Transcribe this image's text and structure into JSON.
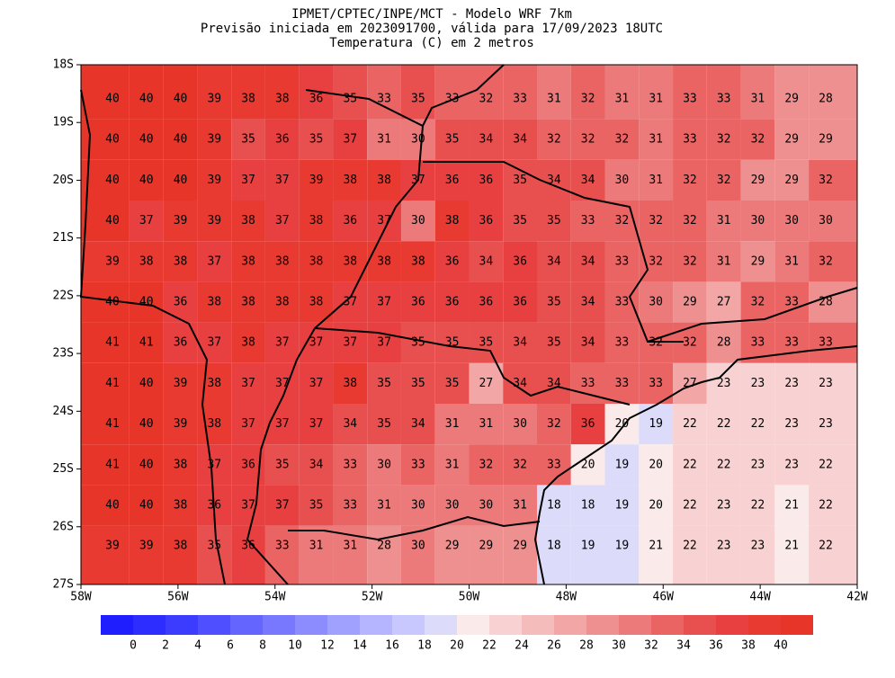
{
  "header": {
    "title": "IPMET/CPTEC/INPE/MCT - Modelo WRF 7km",
    "subtitle": "Previsão iniciada em 2023091700, válida para 17/09/2023 18UTC",
    "variable": "Temperatura (C) em 2 metros"
  },
  "map": {
    "lon_lim": [
      58,
      42
    ],
    "lat_lim": [
      18,
      27
    ],
    "lon_ticks": [
      {
        "value": 58,
        "label": "58W"
      },
      {
        "value": 56,
        "label": "56W"
      },
      {
        "value": 54,
        "label": "54W"
      },
      {
        "value": 52,
        "label": "52W"
      },
      {
        "value": 50,
        "label": "50W"
      },
      {
        "value": 48,
        "label": "48W"
      },
      {
        "value": 46,
        "label": "46W"
      },
      {
        "value": 44,
        "label": "44W"
      },
      {
        "value": 42,
        "label": "42W"
      }
    ],
    "lat_ticks": [
      {
        "value": 18,
        "label": "18S"
      },
      {
        "value": 19,
        "label": "19S"
      },
      {
        "value": 20,
        "label": "20S"
      },
      {
        "value": 21,
        "label": "21S"
      },
      {
        "value": 22,
        "label": "22S"
      },
      {
        "value": 23,
        "label": "23S"
      },
      {
        "value": 24,
        "label": "24S"
      },
      {
        "value": 25,
        "label": "25S"
      },
      {
        "value": 26,
        "label": "26S"
      },
      {
        "value": 27,
        "label": "27S"
      }
    ],
    "grid": [
      [
        40,
        40,
        40,
        39,
        38,
        38,
        36,
        35,
        33,
        35,
        33,
        32,
        33,
        31,
        32,
        31,
        31,
        33,
        33,
        31,
        29,
        28
      ],
      [
        40,
        40,
        40,
        39,
        35,
        36,
        35,
        37,
        31,
        30,
        35,
        34,
        34,
        32,
        32,
        32,
        31,
        33,
        32,
        32,
        29,
        29
      ],
      [
        40,
        40,
        40,
        39,
        37,
        37,
        39,
        38,
        38,
        37,
        36,
        36,
        35,
        34,
        34,
        30,
        31,
        32,
        32,
        29,
        29,
        32
      ],
      [
        40,
        37,
        39,
        39,
        38,
        37,
        38,
        36,
        37,
        30,
        38,
        36,
        35,
        35,
        33,
        32,
        32,
        32,
        31,
        30,
        30,
        30
      ],
      [
        39,
        38,
        38,
        37,
        38,
        38,
        38,
        38,
        38,
        38,
        36,
        34,
        36,
        34,
        34,
        33,
        32,
        32,
        31,
        29,
        31,
        32
      ],
      [
        40,
        40,
        36,
        38,
        38,
        38,
        38,
        37,
        37,
        36,
        36,
        36,
        36,
        35,
        34,
        33,
        30,
        29,
        27,
        32,
        33,
        28
      ],
      [
        41,
        41,
        36,
        37,
        38,
        37,
        37,
        37,
        37,
        35,
        35,
        35,
        34,
        35,
        34,
        33,
        32,
        32,
        28,
        33,
        33,
        33
      ],
      [
        41,
        40,
        39,
        38,
        37,
        37,
        37,
        38,
        35,
        35,
        35,
        27,
        34,
        34,
        33,
        33,
        33,
        27,
        23,
        23,
        23,
        23
      ],
      [
        41,
        40,
        39,
        38,
        37,
        37,
        37,
        34,
        35,
        34,
        31,
        31,
        30,
        32,
        36,
        20,
        19,
        22,
        22,
        22,
        23,
        23
      ],
      [
        41,
        40,
        38,
        37,
        36,
        35,
        34,
        33,
        30,
        33,
        31,
        32,
        32,
        33,
        20,
        19,
        20,
        22,
        22,
        23,
        23,
        22
      ],
      [
        40,
        40,
        38,
        36,
        37,
        37,
        35,
        33,
        31,
        30,
        30,
        30,
        31,
        18,
        18,
        19,
        20,
        22,
        23,
        22,
        21,
        22
      ],
      [
        39,
        39,
        38,
        35,
        36,
        33,
        31,
        31,
        28,
        30,
        29,
        29,
        29,
        18,
        19,
        19,
        21,
        22,
        23,
        23,
        21,
        22
      ]
    ]
  },
  "colorbar": {
    "levels": [
      0,
      2,
      4,
      6,
      8,
      10,
      12,
      14,
      16,
      18,
      20,
      22,
      24,
      26,
      28,
      30,
      32,
      34,
      36,
      38,
      40
    ],
    "colors": [
      "#1e1eff",
      "#2d2dff",
      "#3c3cff",
      "#4f4fff",
      "#6464ff",
      "#7878ff",
      "#8c8cff",
      "#a0a0ff",
      "#b4b4ff",
      "#c8c8ff",
      "#dcdcfa",
      "#faeaea",
      "#f8d2d2",
      "#f5bcbc",
      "#f2a6a6",
      "#ef9090",
      "#ec7a7a",
      "#ea6464",
      "#e85050",
      "#e84040",
      "#e83a30",
      "#e8352a"
    ]
  }
}
